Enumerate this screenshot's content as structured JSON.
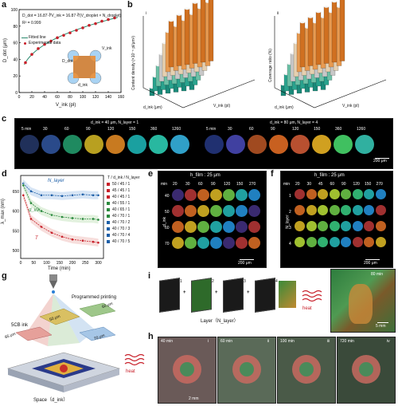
{
  "panels": {
    "a": {
      "label": "a",
      "equation": "D_dot = 16.87·∛V_ink = 16.87·∛(V_droplet × N_droplet)",
      "r2": "R² = 0.999",
      "legend_fit": "Fitted line",
      "legend_exp": "Experimental data",
      "diagram_vink": "V_ink",
      "diagram_dink": "d_ink",
      "diagram_ddot": "D_dot"
    },
    "b": {
      "label": "b",
      "sub1": "i",
      "sub2": "ii",
      "y1": "Content density (×10⁻⁵ pl/μm²)",
      "y2": "Coverage ratio (%)",
      "x_axis": "d_ink (μm)",
      "z_axis": "V_ink (pl)"
    },
    "c": {
      "label": "c",
      "left_title": "d_ink = 40 μm, N_layer = 1",
      "right_title": "d_ink = 80 μm, N_layer = 4",
      "times": [
        "5 min",
        "30",
        "60",
        "90",
        "120",
        "150",
        "360",
        "1260"
      ],
      "scale": "200 μm"
    },
    "d": {
      "label": "d",
      "xlabel": "Time (min)",
      "ylabel": "λ_max (nm)",
      "anno_n": "N_layer",
      "anno_d": "d_ink",
      "anno_t": "T",
      "legend_title": "T / d_ink / N_layer",
      "legend": [
        "50 / 45 / 1",
        "45 / 45 / 1",
        "40 / 45 / 1",
        "40 / 55 / 1",
        "40 / 65 / 1",
        "40 / 70 / 1",
        "40 / 70 / 2",
        "40 / 70 / 3",
        "40 / 70 / 4",
        "40 / 70 / 5"
      ],
      "xticks": [
        "0",
        "50",
        "100",
        "150",
        "200",
        "250",
        "300"
      ],
      "yticks": [
        "500",
        "550",
        "600",
        "650"
      ]
    },
    "e": {
      "label": "e",
      "title": "h_film : 25 μm",
      "corner_min": "min",
      "corner_d": "μm",
      "times": [
        "20",
        "30",
        "60",
        "90",
        "120",
        "150",
        "270"
      ],
      "rows": [
        "40",
        "50",
        "60",
        "70"
      ],
      "ylab": "d_ink",
      "scale": "200 μm"
    },
    "f": {
      "label": "f",
      "title": "h_film : 25 μm",
      "corner_min": "min",
      "times": [
        "20",
        "30",
        "45",
        "60",
        "90",
        "120",
        "150",
        "270"
      ],
      "rows": [
        "1",
        "2",
        "3",
        "4"
      ],
      "ylab": "N_layer",
      "scale": "200 μm"
    },
    "g": {
      "label": "g",
      "ink": "5CB ink",
      "printing": "Programmed printing",
      "bottom": "Space（d_ink）",
      "heat": "heat",
      "pillars": [
        "85 μm",
        "70 μm",
        "60 μm",
        "50 μm"
      ]
    },
    "i": {
      "label": "i",
      "layers": [
        "1",
        "2",
        "3",
        "4"
      ],
      "caption": "Layer（N_layer）",
      "heat": "heat",
      "time": "80 min",
      "scale": "5 mm"
    },
    "h": {
      "label": "h",
      "frames": [
        {
          "time": "40 min",
          "roman": "i"
        },
        {
          "time": "60 min",
          "roman": "ii"
        },
        {
          "time": "100 min",
          "roman": "iii"
        },
        {
          "time": "720 min",
          "roman": "iv"
        }
      ],
      "scale": "2 mm"
    }
  },
  "chart_data": [
    {
      "type": "scatter",
      "panel": "a",
      "xlabel": "V_ink (pl)",
      "ylabel": "D_dot (μm)",
      "xlim": [
        0,
        160
      ],
      "ylim": [
        0,
        100
      ],
      "x": [
        10,
        20,
        30,
        40,
        50,
        60,
        70,
        80,
        90,
        100,
        110,
        120,
        130,
        140,
        150
      ],
      "y": [
        36,
        46,
        53,
        58,
        62,
        66,
        69,
        72,
        75,
        78,
        81,
        83,
        86,
        88,
        90
      ],
      "xticks": [
        "0",
        "20",
        "40",
        "60",
        "80",
        "100",
        "120",
        "140",
        "160"
      ],
      "yticks": [
        "0",
        "20",
        "40",
        "60",
        "80",
        "100"
      ]
    },
    {
      "type": "line",
      "panel": "d",
      "xlabel": "Time (min)",
      "ylabel": "λ_max (nm)",
      "xlim": [
        0,
        320
      ],
      "ylim": [
        480,
        690
      ],
      "series": [
        {
          "name": "N_layer",
          "values_x": [
            10,
            40,
            80,
            120,
            160,
            200,
            240,
            280,
            300
          ],
          "values_y": [
            670,
            650,
            640,
            640,
            638,
            640,
            642,
            640,
            640
          ]
        },
        {
          "name": "d_ink",
          "values_x": [
            10,
            40,
            80,
            120,
            160,
            200,
            240,
            280,
            300
          ],
          "values_y": [
            665,
            620,
            600,
            590,
            585,
            582,
            580,
            580,
            578
          ]
        },
        {
          "name": "T",
          "values_x": [
            10,
            40,
            80,
            120,
            160,
            200,
            240,
            280,
            300
          ],
          "values_y": [
            640,
            580,
            560,
            545,
            535,
            528,
            525,
            522,
            520
          ]
        }
      ]
    }
  ]
}
